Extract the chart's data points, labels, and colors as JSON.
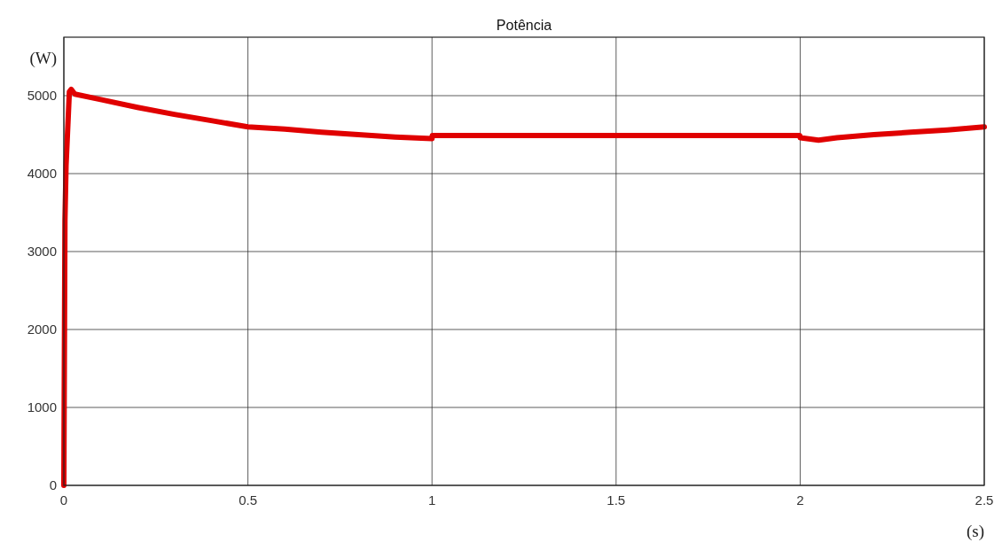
{
  "chart_data": {
    "type": "line",
    "title": "Potência",
    "xlabel": "(s)",
    "ylabel": "(W)",
    "x": [
      0,
      0.003,
      0.006,
      0.015,
      0.02,
      0.03,
      0.1,
      0.2,
      0.3,
      0.4,
      0.5,
      0.6,
      0.7,
      0.8,
      0.9,
      1.0,
      1.001,
      1.5,
      1.999,
      2.0,
      2.05,
      2.1,
      2.2,
      2.3,
      2.4,
      2.5
    ],
    "series": [
      {
        "color": "#e00000",
        "values": [
          0,
          3400,
          4100,
          5050,
          5080,
          5020,
          4950,
          4850,
          4760,
          4680,
          4600,
          4570,
          4530,
          4500,
          4470,
          4450,
          4490,
          4490,
          4490,
          4460,
          4430,
          4460,
          4500,
          4530,
          4560,
          4600
        ]
      }
    ],
    "xlim": [
      0,
      2.5
    ],
    "ylim": [
      0,
      5750
    ],
    "xticks": [
      0,
      0.5,
      1,
      1.5,
      2,
      2.5
    ],
    "yticks": [
      0,
      1000,
      2000,
      3000,
      4000,
      5000
    ],
    "grid": true,
    "line_style": "solid",
    "marker": "none"
  }
}
